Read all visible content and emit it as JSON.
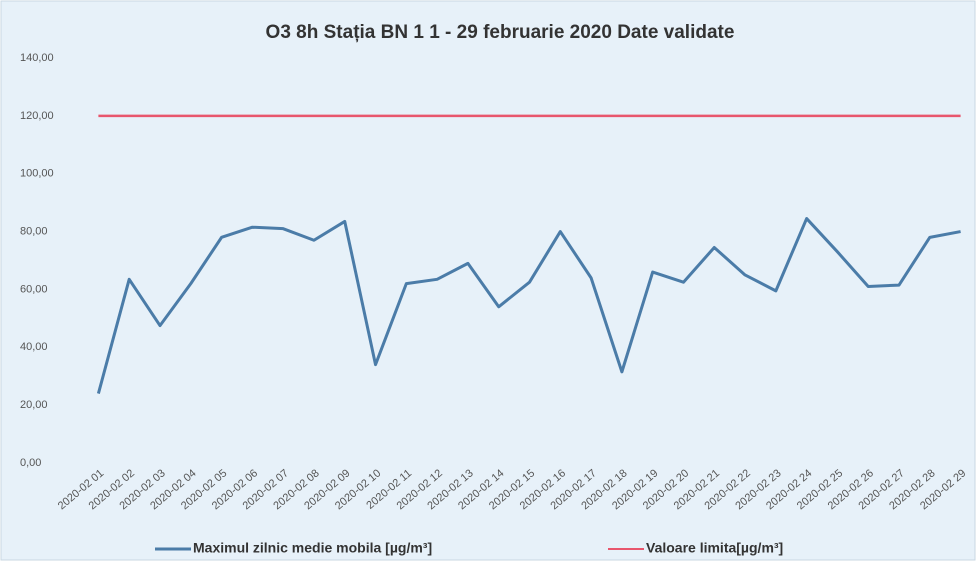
{
  "chart_data": {
    "type": "line",
    "title": "O3 8h Stația BN 1 1 - 29 februarie 2020 Date validate",
    "categories": [
      "2020-02 01",
      "2020-02 02",
      "2020-02 03",
      "2020-02 04",
      "2020-02 05",
      "2020-02 06",
      "2020-02 07",
      "2020-02 08",
      "2020-02 09",
      "2020-02 10",
      "2020-02 11",
      "2020-02 12",
      "2020-02 13",
      "2020-02 14",
      "2020-02 15",
      "2020-02 16",
      "2020-02 17",
      "2020-02 18",
      "2020-02 19",
      "2020-02 20",
      "2020-02 21",
      "2020-02 22",
      "2020-02 23",
      "2020-02 24",
      "2020-02 25",
      "2020-02 26",
      "2020-02 27",
      "2020-02 28",
      "2020-02 29"
    ],
    "series": [
      {
        "name": "Maximul zilnic medie mobila [µg/m³]",
        "color": "#4b7ca8",
        "values": [
          24,
          63.5,
          47.5,
          62,
          78,
          81.5,
          81,
          77,
          83.5,
          34,
          62,
          63.5,
          69,
          54,
          62.5,
          80,
          64,
          31.5,
          66,
          62.5,
          74.5,
          65,
          59.5,
          84.5,
          73,
          61,
          61.5,
          78,
          80
        ]
      },
      {
        "name": "Valoare limita[µg/m³]",
        "color": "#e8566d",
        "values": [
          120,
          120,
          120,
          120,
          120,
          120,
          120,
          120,
          120,
          120,
          120,
          120,
          120,
          120,
          120,
          120,
          120,
          120,
          120,
          120,
          120,
          120,
          120,
          120,
          120,
          120,
          120,
          120,
          120
        ]
      }
    ],
    "ylim": [
      0,
      140
    ],
    "yticks": [
      {
        "value": 0,
        "label": "0,00"
      },
      {
        "value": 20,
        "label": "20,00"
      },
      {
        "value": 40,
        "label": "40,00"
      },
      {
        "value": 60,
        "label": "60,00"
      },
      {
        "value": 80,
        "label": "80,00"
      },
      {
        "value": 100,
        "label": "100,00"
      },
      {
        "value": 120,
        "label": "120,00"
      },
      {
        "value": 140,
        "label": "140,00"
      }
    ],
    "grid": false,
    "legend": "bottom"
  }
}
